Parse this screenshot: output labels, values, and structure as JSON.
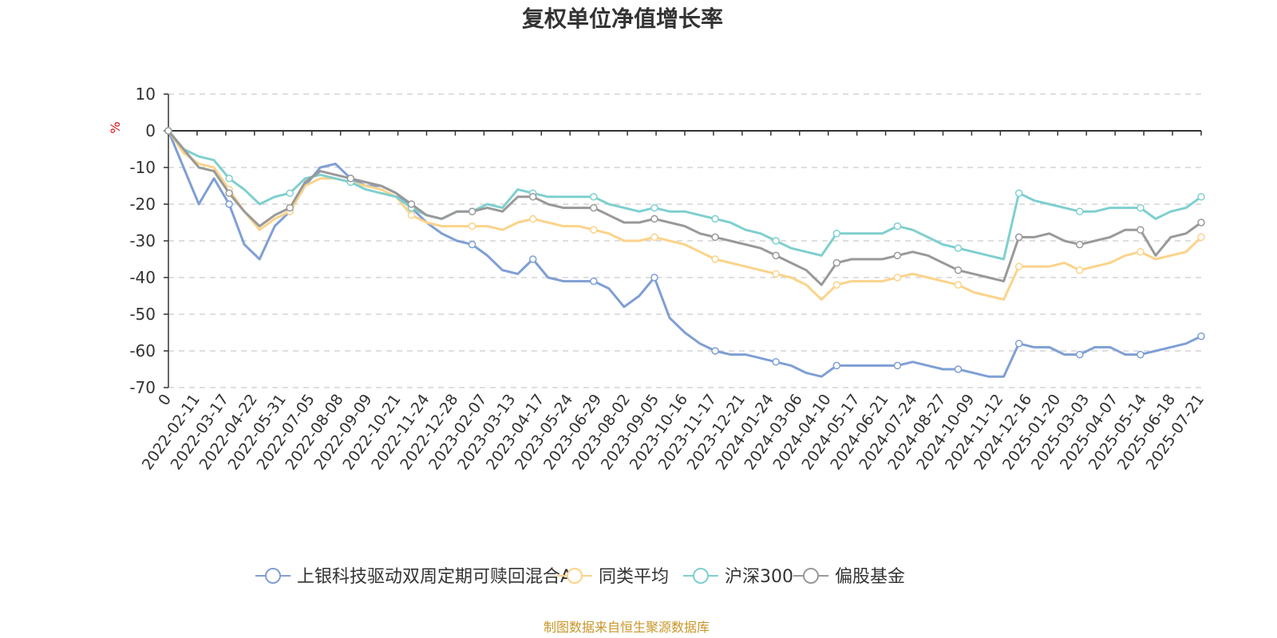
{
  "chart_data": {
    "type": "line",
    "title": "复权单位净值增长率",
    "y_unit": "%",
    "ylim": [
      -70,
      10
    ],
    "y_ticks": [
      "10",
      "0",
      "-10",
      "-20",
      "-30",
      "-40",
      "-50",
      "-60",
      "-70"
    ],
    "x_ticks": [
      "0",
      "2022-02-11",
      "2022-03-17",
      "2022-04-22",
      "2022-05-31",
      "2022-07-05",
      "2022-08-08",
      "2022-09-09",
      "2022-10-21",
      "2022-11-24",
      "2022-12-28",
      "2023-02-07",
      "2023-03-13",
      "2023-04-17",
      "2023-05-24",
      "2023-06-29",
      "2023-08-02",
      "2023-09-05",
      "2023-10-16",
      "2023-11-17",
      "2023-12-21",
      "2024-01-24",
      "2024-03-06",
      "2024-04-10",
      "2024-05-17",
      "2024-06-21",
      "2024-07-24",
      "2024-08-27",
      "2024-10-09",
      "2024-11-12",
      "2024-12-16",
      "2025-01-20",
      "2025-03-03",
      "2025-04-07",
      "2025-05-14",
      "2025-06-18",
      "2025-07-21"
    ],
    "grid": true,
    "legend_position": "bottom",
    "series": [
      {
        "name": "上银科技驱动双周定期可赎回混合A",
        "color": "#7f9fd4",
        "values": [
          0,
          -10,
          -20,
          -13,
          -20,
          -31,
          -35,
          -26,
          -22,
          -15,
          -10,
          -9,
          -13,
          -15,
          -15,
          -17,
          -21,
          -25,
          -28,
          -30,
          -31,
          -34,
          -38,
          -39,
          -35,
          -40,
          -41,
          -41,
          -41,
          -43,
          -48,
          -45,
          -40,
          -51,
          -55,
          -58,
          -60,
          -61,
          -61,
          -62,
          -63,
          -64,
          -66,
          -67,
          -64,
          -64,
          -64,
          -64,
          -64,
          -63,
          -64,
          -65,
          -65,
          -66,
          -67,
          -67,
          -58,
          -59,
          -59,
          -61,
          -61,
          -59,
          -59,
          -61,
          -61,
          -60,
          -59,
          -58,
          -56
        ]
      },
      {
        "name": "同类平均",
        "color": "#fbd38a",
        "values": [
          0,
          -6,
          -9,
          -10,
          -16,
          -22,
          -27,
          -24,
          -22,
          -15,
          -13,
          -13,
          -14,
          -15,
          -16,
          -18,
          -23,
          -25,
          -26,
          -26,
          -26,
          -26,
          -27,
          -25,
          -24,
          -25,
          -26,
          -26,
          -27,
          -28,
          -30,
          -30,
          -29,
          -30,
          -31,
          -33,
          -35,
          -36,
          -37,
          -38,
          -39,
          -40,
          -42,
          -46,
          -42,
          -41,
          -41,
          -41,
          -40,
          -39,
          -40,
          -41,
          -42,
          -44,
          -45,
          -46,
          -37,
          -37,
          -37,
          -36,
          -38,
          -37,
          -36,
          -34,
          -33,
          -35,
          -34,
          -33,
          -29
        ]
      },
      {
        "name": "沪深300",
        "color": "#7fcfcf",
        "values": [
          0,
          -5,
          -7,
          -8,
          -13,
          -16,
          -20,
          -18,
          -17,
          -13,
          -12,
          -13,
          -14,
          -16,
          -17,
          -18,
          -21,
          -23,
          -24,
          -22,
          -22,
          -20,
          -21,
          -16,
          -17,
          -18,
          -18,
          -18,
          -18,
          -20,
          -21,
          -22,
          -21,
          -22,
          -22,
          -23,
          -24,
          -25,
          -27,
          -28,
          -30,
          -32,
          -33,
          -34,
          -28,
          -28,
          -28,
          -28,
          -26,
          -27,
          -29,
          -31,
          -32,
          -33,
          -34,
          -35,
          -17,
          -19,
          -20,
          -21,
          -22,
          -22,
          -21,
          -21,
          -21,
          -24,
          -22,
          -21,
          -18
        ]
      },
      {
        "name": "偏股基金",
        "color": "#999999",
        "values": [
          0,
          -5,
          -10,
          -11,
          -17,
          -22,
          -26,
          -23,
          -21,
          -14,
          -11,
          -12,
          -13,
          -14,
          -15,
          -17,
          -20,
          -23,
          -24,
          -22,
          -22,
          -21,
          -22,
          -18,
          -18,
          -20,
          -21,
          -21,
          -21,
          -23,
          -25,
          -25,
          -24,
          -25,
          -26,
          -28,
          -29,
          -30,
          -31,
          -32,
          -34,
          -36,
          -38,
          -42,
          -36,
          -35,
          -35,
          -35,
          -34,
          -33,
          -34,
          -36,
          -38,
          -39,
          -40,
          -41,
          -29,
          -29,
          -28,
          -30,
          -31,
          -30,
          -29,
          -27,
          -27,
          -34,
          -29,
          -28,
          -25
        ]
      }
    ]
  },
  "source_text": "制图数据来自恒生聚源数据库"
}
